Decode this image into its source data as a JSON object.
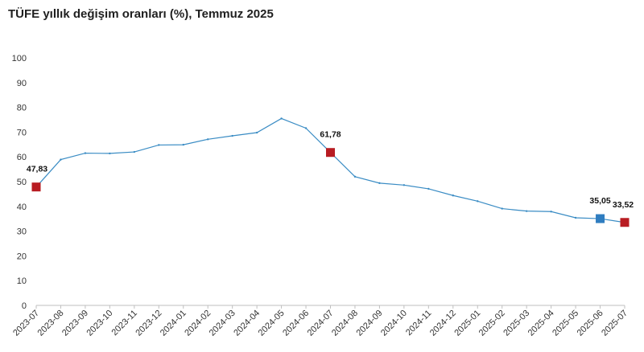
{
  "chart_data": {
    "type": "line",
    "title": "TÜFE yıllık değişim oranları (%), Temmuz 2025",
    "xlabel": "",
    "ylabel": "",
    "ylim": [
      0,
      100
    ],
    "yticks": [
      0,
      10,
      20,
      30,
      40,
      50,
      60,
      70,
      80,
      90,
      100
    ],
    "grid": false,
    "categories": [
      "2023-07",
      "2023-08",
      "2023-09",
      "2023-10",
      "2023-11",
      "2023-12",
      "2024-01",
      "2024-02",
      "2024-03",
      "2024-04",
      "2024-05",
      "2024-06",
      "2024-07",
      "2024-08",
      "2024-09",
      "2024-10",
      "2024-11",
      "2024-12",
      "2025-01",
      "2025-02",
      "2025-03",
      "2025-04",
      "2025-05",
      "2025-06",
      "2025-07"
    ],
    "series": [
      {
        "values": [
          47.83,
          58.9,
          61.5,
          61.4,
          62.0,
          64.8,
          64.9,
          67.1,
          68.5,
          69.8,
          75.5,
          71.6,
          61.78,
          52.0,
          49.4,
          48.6,
          47.1,
          44.4,
          42.1,
          39.1,
          38.1,
          37.9,
          35.4,
          35.05,
          33.52
        ],
        "color": "#3a8cc4"
      }
    ],
    "markers": [
      {
        "category": "2023-07",
        "label": "47,83",
        "color": "#b81c22"
      },
      {
        "category": "2024-07",
        "label": "61,78",
        "color": "#b81c22"
      },
      {
        "category": "2025-06",
        "label": "35,05",
        "color": "#2f7dc0"
      },
      {
        "category": "2025-07",
        "label": "33,52",
        "color": "#b81c22"
      }
    ]
  }
}
